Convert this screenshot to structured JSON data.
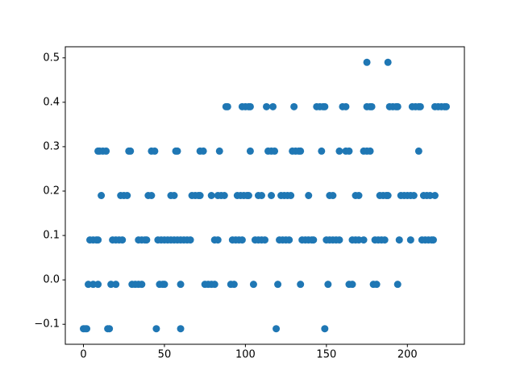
{
  "chart_data": {
    "type": "scatter",
    "color": "#1f77b4",
    "xlim": [
      -11.2,
      235.2
    ],
    "ylim": [
      -0.145,
      0.525
    ],
    "xticks": [
      0,
      50,
      100,
      150,
      200
    ],
    "yticks": [
      {
        "value": -0.1,
        "label": "−0.1"
      },
      {
        "value": 0,
        "label": "0.0"
      },
      0.1,
      0.2,
      0.3,
      0.4,
      0.5
    ],
    "x": [
      0,
      1,
      2,
      15,
      16,
      45,
      60,
      119,
      149,
      3,
      6,
      9,
      17,
      20,
      30,
      32,
      34,
      36,
      47,
      49,
      50,
      60,
      75,
      77,
      79,
      81,
      91,
      93,
      105,
      120,
      134,
      151,
      164,
      166,
      179,
      181,
      194,
      4,
      6,
      8,
      9,
      18,
      20,
      22,
      24,
      34,
      36,
      38,
      39,
      46,
      48,
      50,
      52,
      54,
      56,
      58,
      60,
      62,
      64,
      66,
      81,
      83,
      92,
      94,
      96,
      98,
      106,
      108,
      110,
      112,
      121,
      123,
      125,
      127,
      135,
      137,
      139,
      141,
      142,
      150,
      152,
      154,
      156,
      158,
      166,
      168,
      170,
      173,
      180,
      182,
      184,
      186,
      195,
      202,
      209,
      211,
      213,
      215,
      216,
      11,
      23,
      25,
      27,
      40,
      42,
      54,
      56,
      67,
      69,
      71,
      72,
      79,
      83,
      85,
      87,
      95,
      97,
      99,
      101,
      102,
      108,
      110,
      116,
      122,
      124,
      126,
      128,
      139,
      152,
      154,
      168,
      170,
      183,
      185,
      187,
      188,
      196,
      198,
      200,
      202,
      204,
      210,
      212,
      214,
      217,
      9,
      10,
      12,
      14,
      28,
      29,
      42,
      44,
      57,
      58,
      72,
      74,
      84,
      103,
      114,
      116,
      118,
      129,
      131,
      133,
      134,
      147,
      158,
      162,
      164,
      173,
      175,
      177,
      207,
      88,
      89,
      98,
      100,
      102,
      103,
      113,
      117,
      130,
      144,
      146,
      148,
      149,
      160,
      162,
      175,
      177,
      178,
      189,
      191,
      193,
      194,
      203,
      205,
      207,
      208,
      217,
      219,
      221,
      223,
      224,
      175,
      188
    ],
    "values": [
      -0.11,
      -0.11,
      -0.11,
      -0.11,
      -0.11,
      -0.11,
      -0.11,
      -0.11,
      -0.11,
      -0.01,
      -0.01,
      -0.01,
      -0.01,
      -0.01,
      -0.01,
      -0.01,
      -0.01,
      -0.01,
      -0.01,
      -0.01,
      -0.01,
      -0.01,
      -0.01,
      -0.01,
      -0.01,
      -0.01,
      -0.01,
      -0.01,
      -0.01,
      -0.01,
      -0.01,
      -0.01,
      -0.01,
      -0.01,
      -0.01,
      -0.01,
      -0.01,
      0.09,
      0.09,
      0.09,
      0.09,
      0.09,
      0.09,
      0.09,
      0.09,
      0.09,
      0.09,
      0.09,
      0.09,
      0.09,
      0.09,
      0.09,
      0.09,
      0.09,
      0.09,
      0.09,
      0.09,
      0.09,
      0.09,
      0.09,
      0.09,
      0.09,
      0.09,
      0.09,
      0.09,
      0.09,
      0.09,
      0.09,
      0.09,
      0.09,
      0.09,
      0.09,
      0.09,
      0.09,
      0.09,
      0.09,
      0.09,
      0.09,
      0.09,
      0.09,
      0.09,
      0.09,
      0.09,
      0.09,
      0.09,
      0.09,
      0.09,
      0.09,
      0.09,
      0.09,
      0.09,
      0.09,
      0.09,
      0.09,
      0.09,
      0.09,
      0.09,
      0.09,
      0.09,
      0.19,
      0.19,
      0.19,
      0.19,
      0.19,
      0.19,
      0.19,
      0.19,
      0.19,
      0.19,
      0.19,
      0.19,
      0.19,
      0.19,
      0.19,
      0.19,
      0.19,
      0.19,
      0.19,
      0.19,
      0.19,
      0.19,
      0.19,
      0.19,
      0.19,
      0.19,
      0.19,
      0.19,
      0.19,
      0.19,
      0.19,
      0.19,
      0.19,
      0.19,
      0.19,
      0.19,
      0.19,
      0.19,
      0.19,
      0.19,
      0.19,
      0.19,
      0.19,
      0.19,
      0.19,
      0.19,
      0.29,
      0.29,
      0.29,
      0.29,
      0.29,
      0.29,
      0.29,
      0.29,
      0.29,
      0.29,
      0.29,
      0.29,
      0.29,
      0.29,
      0.29,
      0.29,
      0.29,
      0.29,
      0.29,
      0.29,
      0.29,
      0.29,
      0.29,
      0.29,
      0.29,
      0.29,
      0.29,
      0.29,
      0.29,
      0.39,
      0.39,
      0.39,
      0.39,
      0.39,
      0.39,
      0.39,
      0.39,
      0.39,
      0.39,
      0.39,
      0.39,
      0.39,
      0.39,
      0.39,
      0.39,
      0.39,
      0.39,
      0.39,
      0.39,
      0.39,
      0.39,
      0.39,
      0.39,
      0.39,
      0.39,
      0.39,
      0.39,
      0.39,
      0.39,
      0.39,
      0.49,
      0.49
    ]
  }
}
